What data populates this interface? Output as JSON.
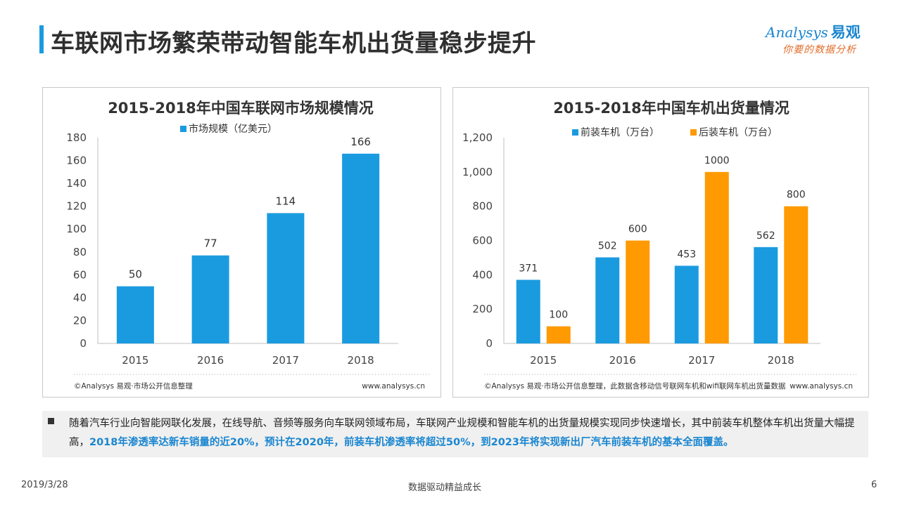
{
  "page": {
    "title": "车联网市场繁荣带动智能车机出货量稳步提升",
    "logo_main": "Analysys",
    "logo_cn": "易观",
    "logo_slogan": "你要的数据分析"
  },
  "colors": {
    "accent_blue": "#1a9be0",
    "accent_orange": "#ff9a02"
  },
  "chart_data": [
    {
      "type": "bar",
      "title": "2015-2018年中国车联网市场规模情况",
      "categories": [
        "2015",
        "2016",
        "2017",
        "2018"
      ],
      "series": [
        {
          "name": "市场规模（亿美元）",
          "values": [
            50,
            77,
            114,
            166
          ],
          "color": "#1a9be0"
        }
      ],
      "ylim": [
        0,
        180
      ],
      "yticks": [
        0,
        20,
        40,
        60,
        80,
        100,
        120,
        140,
        160,
        180
      ],
      "legend": "top",
      "grid": false,
      "source": "©Analysys 易观·市场公开信息整理",
      "website": "www.analysys.cn"
    },
    {
      "type": "bar",
      "title": "2015-2018年中国车机出货量情况",
      "categories": [
        "2015",
        "2016",
        "2017",
        "2018"
      ],
      "series": [
        {
          "name": "前装车机（万台）",
          "values": [
            371,
            502,
            453,
            562
          ],
          "color": "#1a9be0"
        },
        {
          "name": "后装车机（万台）",
          "values": [
            100,
            600,
            1000,
            800
          ],
          "color": "#ff9a02"
        }
      ],
      "ylim": [
        0,
        1200
      ],
      "yticks": [
        0,
        200,
        400,
        600,
        800,
        1000,
        1200
      ],
      "ytick_labels": [
        "0",
        "200",
        "400",
        "600",
        "800",
        "1,000",
        "1,200"
      ],
      "legend": "top",
      "grid": false,
      "source": "©Analysys 易观·市场公开信息整理，此数据含移动信号联网车机和wifi联网车机出货量数据",
      "website": "www.analysys.cn"
    }
  ],
  "note": {
    "text_plain": "随着汽车行业向智能网联化发展，在线导航、音频等服务向车联网领域布局，车联网产业规模和智能车机的出货量规模实现同步快速增长，其中前装车机整体车机出货量大幅提高，",
    "text_highlight": "2018年渗透率达新车销量的近20%，预计在2020年，前装车机渗透率将超过50%，到2023年将实现新出厂汽车前装车机的基本全面覆盖。"
  },
  "footer": {
    "date": "2019/3/28",
    "slogan": "数据驱动精益成长",
    "page_number": "6"
  }
}
